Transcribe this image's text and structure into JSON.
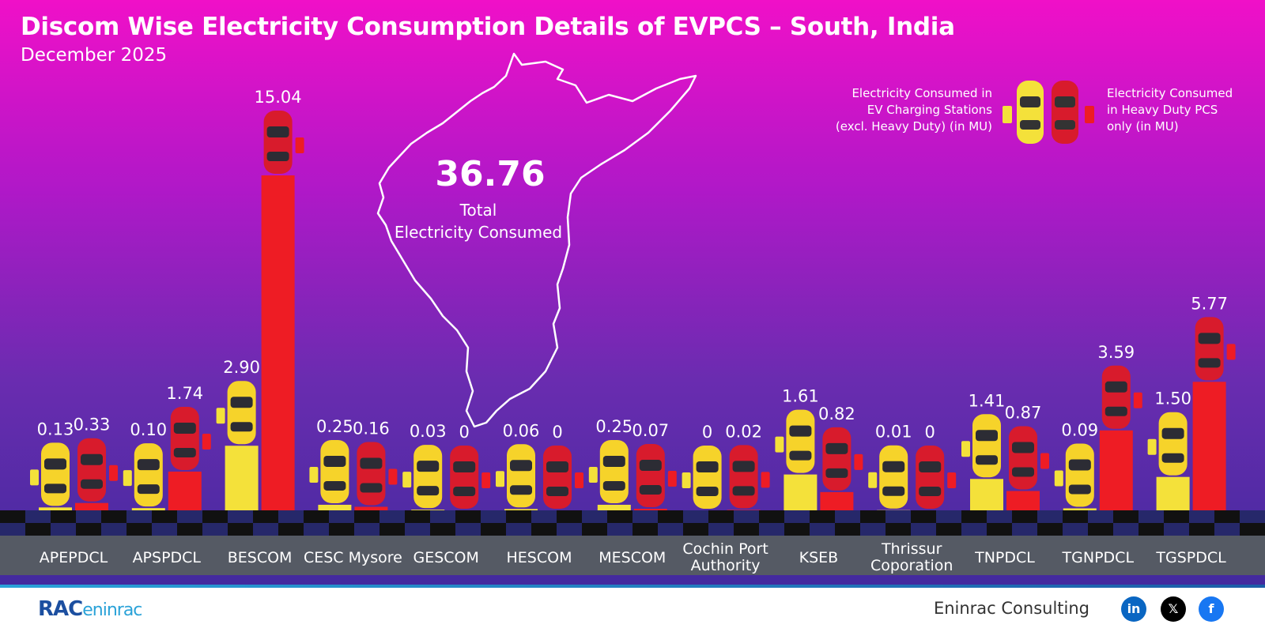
{
  "title": "Discom Wise Electricity Consumption Details of EVPCS – South, India",
  "subtitle": "December 2025",
  "total": {
    "value": "36.76",
    "label_line1": "Total",
    "label_line2": "Electricity Consumed"
  },
  "legend": {
    "left_line1": "Electricity Consumed in",
    "left_line2": "EV Charging Stations",
    "left_line3": "(excl. Heavy Duty) (in MU)",
    "right_line1": "Electricity Consumed",
    "right_line2": "in Heavy Duty PCS",
    "right_line3": "only (in MU)"
  },
  "footer": {
    "logo_text": "RAC",
    "logo_suffix": "eninrac",
    "brand": "Eninrac Consulting",
    "social": [
      {
        "icon": "linkedin-icon",
        "glyph": "in",
        "color": "#0a66c2"
      },
      {
        "icon": "x-icon",
        "glyph": "𝕏",
        "color": "#000000"
      },
      {
        "icon": "facebook-icon",
        "glyph": "f",
        "color": "#1877f2"
      }
    ]
  },
  "colors": {
    "ev": "#f4e13a",
    "heavy": "#ee1c24",
    "ground": "#555a64"
  },
  "chart_data": {
    "type": "bar",
    "categories": [
      [
        "APEPDCL"
      ],
      [
        "APSPDCL"
      ],
      [
        "BESCOM"
      ],
      [
        "CESC Mysore"
      ],
      [
        "GESCOM"
      ],
      [
        "HESCOM"
      ],
      [
        "MESCOM"
      ],
      [
        "Cochin Port",
        "Authority"
      ],
      [
        "KSEB"
      ],
      [
        "Thrissur",
        "Coporation"
      ],
      [
        "TNPDCL"
      ],
      [
        "TGNPDCL"
      ],
      [
        "TGSPDCL"
      ]
    ],
    "series": [
      {
        "values": [
          0.13,
          0.1,
          2.9,
          0.25,
          0.03,
          0.06,
          0.25,
          0,
          1.61,
          0.01,
          1.41,
          0.09,
          1.5
        ],
        "labels": [
          "0.13",
          "0.10",
          "2.90",
          "0.25",
          "0.03",
          "0.06",
          "0.25",
          "0",
          "1.61",
          "0.01",
          "1.41",
          "0.09",
          "1.50"
        ]
      },
      {
        "values": [
          0.33,
          1.74,
          15.04,
          0.16,
          0,
          0,
          0.07,
          0.02,
          0.82,
          0,
          0.87,
          3.59,
          5.77
        ],
        "labels": [
          "0.33",
          "1.74",
          "15.04",
          "0.16",
          "0",
          "0",
          "0.07",
          "0.02",
          "0.82",
          "0",
          "0.87",
          "3.59",
          "5.77"
        ]
      }
    ],
    "ylim": [
      0,
      15.04
    ]
  }
}
